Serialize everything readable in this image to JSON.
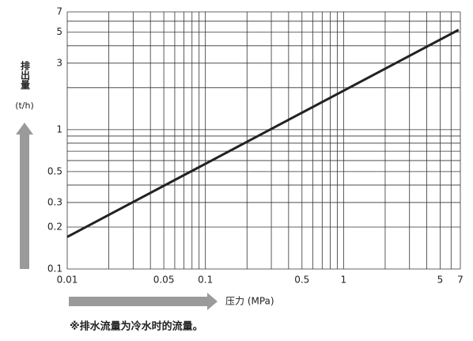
{
  "chart_data": {
    "type": "line",
    "log_x": true,
    "log_y": true,
    "color": "#222222",
    "x": [
      0.01,
      6.8
    ],
    "values": [
      0.17,
      5.2
    ],
    "xlim": [
      0.01,
      7
    ],
    "ylim": [
      0.1,
      7
    ],
    "xticks": [
      0.01,
      0.05,
      0.1,
      0.5,
      1,
      5,
      7
    ],
    "yticks": [
      0.1,
      0.2,
      0.3,
      0.5,
      1,
      3,
      5,
      7
    ],
    "xgrid": [
      0.01,
      0.02,
      0.03,
      0.04,
      0.05,
      0.06,
      0.07,
      0.08,
      0.09,
      0.1,
      0.2,
      0.3,
      0.4,
      0.5,
      0.6,
      0.7,
      0.8,
      0.9,
      1,
      2,
      3,
      4,
      5,
      6,
      7
    ],
    "ygrid": [
      0.1,
      0.2,
      0.3,
      0.4,
      0.5,
      0.6,
      0.7,
      0.8,
      0.9,
      1,
      2,
      3,
      4,
      5,
      6,
      7
    ],
    "ylabel": "排出量",
    "yunit": "(t/h)",
    "xlabel": "压力 (MPa)",
    "note": "※排水流量为冷水时的流量。"
  }
}
